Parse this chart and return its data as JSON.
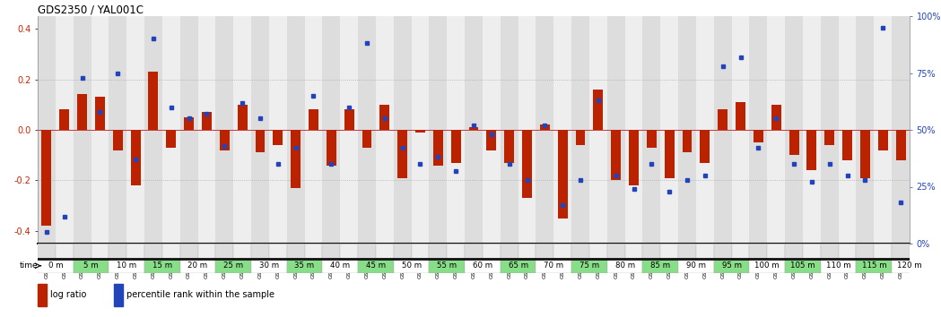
{
  "title": "GDS2350 / YAL001C",
  "gsm_labels": [
    "GSM112133",
    "GSM112158",
    "GSM112134",
    "GSM112159",
    "GSM112135",
    "GSM112160",
    "GSM112161",
    "GSM112137",
    "GSM112162",
    "GSM112138",
    "GSM112163",
    "GSM112139",
    "GSM112164",
    "GSM112140",
    "GSM112165",
    "GSM112141",
    "GSM112166",
    "GSM112142",
    "GSM112167",
    "GSM112143",
    "GSM112168",
    "GSM112144",
    "GSM112169",
    "GSM112145",
    "GSM112170",
    "GSM112146",
    "GSM112171",
    "GSM112147",
    "GSM112172",
    "GSM112148",
    "GSM112173",
    "GSM112149",
    "GSM112174",
    "GSM112150",
    "GSM112175",
    "GSM112151",
    "GSM112176",
    "GSM112152",
    "GSM112177",
    "GSM112153",
    "GSM112178",
    "GSM112154",
    "GSM112179",
    "GSM112155",
    "GSM112180",
    "GSM112156",
    "GSM112181",
    "GSM112157",
    "GSM112182"
  ],
  "time_labels": [
    "0 m",
    "5 m",
    "10 m",
    "15 m",
    "20 m",
    "25 m",
    "30 m",
    "35 m",
    "40 m",
    "45 m",
    "50 m",
    "55 m",
    "60 m",
    "65 m",
    "70 m",
    "75 m",
    "80 m",
    "85 m",
    "90 m",
    "95 m",
    "100 m",
    "105 m",
    "110 m",
    "115 m",
    "120 m"
  ],
  "log_ratio": [
    -0.38,
    0.08,
    0.14,
    0.13,
    -0.08,
    -0.22,
    0.23,
    -0.07,
    0.05,
    0.07,
    -0.08,
    0.1,
    -0.09,
    -0.06,
    -0.23,
    0.08,
    -0.14,
    0.08,
    -0.07,
    0.1,
    -0.19,
    -0.01,
    -0.14,
    -0.13,
    0.01,
    -0.08,
    -0.13,
    -0.27,
    0.02,
    -0.35,
    -0.06,
    0.16,
    -0.2,
    -0.22,
    -0.07,
    -0.19,
    -0.09,
    -0.13,
    0.08,
    0.11,
    -0.05,
    0.1,
    -0.1,
    -0.16,
    -0.06,
    -0.12,
    -0.19,
    -0.08,
    -0.12
  ],
  "percentile_rank": [
    0.05,
    0.12,
    0.73,
    0.58,
    0.75,
    0.37,
    0.9,
    0.6,
    0.55,
    0.57,
    0.43,
    0.62,
    0.55,
    0.35,
    0.42,
    0.65,
    0.35,
    0.6,
    0.88,
    0.55,
    0.42,
    0.35,
    0.38,
    0.32,
    0.52,
    0.48,
    0.35,
    0.28,
    0.52,
    0.17,
    0.28,
    0.63,
    0.3,
    0.24,
    0.35,
    0.23,
    0.28,
    0.3,
    0.78,
    0.82,
    0.42,
    0.55,
    0.35,
    0.27,
    0.35,
    0.3,
    0.28,
    0.95,
    0.18
  ],
  "bar_color": "#bb2200",
  "dot_color": "#2244bb",
  "ylim_left": [
    -0.45,
    0.45
  ],
  "ylim_right": [
    0.0,
    1.0
  ],
  "yticks_left": [
    -0.4,
    -0.2,
    0.0,
    0.2,
    0.4
  ],
  "yticks_right": [
    0.0,
    0.25,
    0.5,
    0.75,
    1.0
  ],
  "ytick_labels_right": [
    "0%",
    "25%",
    "50%",
    "75%",
    "100%"
  ],
  "legend_log_ratio": "log ratio",
  "legend_percentile": "percentile rank within the sample",
  "time_colors": [
    "#ffffff",
    "#88dd88"
  ],
  "gsm_cell_colors": [
    "#dddddd",
    "#eeeeee"
  ],
  "border_color": "#111111"
}
